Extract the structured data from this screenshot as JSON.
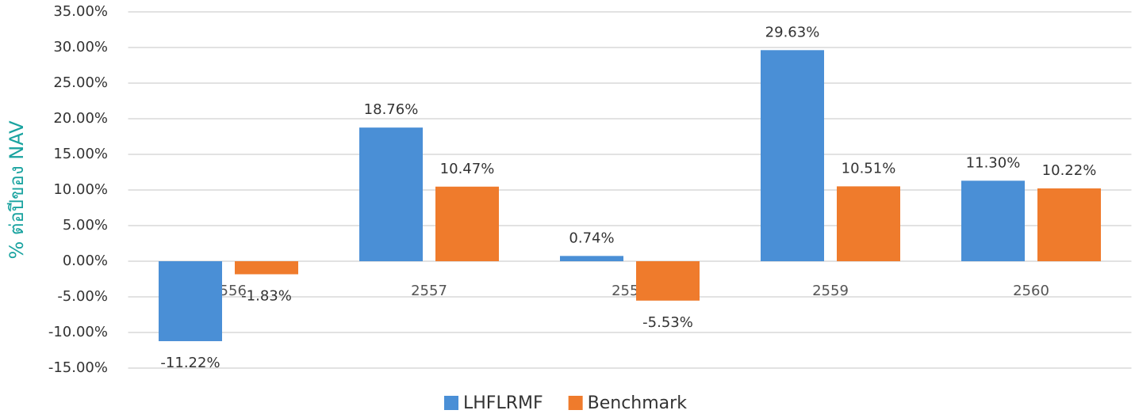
{
  "chart_data": {
    "type": "bar",
    "y_axis_label": "% ต่อปีของ NAV",
    "categories": [
      "2556",
      "2557",
      "2558",
      "2559",
      "2560"
    ],
    "series": [
      {
        "name": "LHFLRMF",
        "color": "#4a8fd6",
        "values": [
          -11.22,
          18.76,
          0.74,
          29.63,
          11.3
        ],
        "value_labels": [
          "-11.22%",
          "18.76%",
          "0.74%",
          "29.63%",
          "11.30%"
        ]
      },
      {
        "name": "Benchmark",
        "color": "#ef7b2c",
        "values": [
          -1.83,
          10.47,
          -5.53,
          10.51,
          10.22
        ],
        "value_labels": [
          "-1.83%",
          "10.47%",
          "-5.53%",
          "10.51%",
          "10.22%"
        ]
      }
    ],
    "ylim": [
      -15,
      35
    ],
    "yticks": [
      {
        "value": -15,
        "label": "-15.00%"
      },
      {
        "value": -10,
        "label": "-10.00%"
      },
      {
        "value": -5,
        "label": "-5.00%"
      },
      {
        "value": 0,
        "label": "0.00%"
      },
      {
        "value": 5,
        "label": "5.00%"
      },
      {
        "value": 10,
        "label": "10.00%"
      },
      {
        "value": 15,
        "label": "15.00%"
      },
      {
        "value": 20,
        "label": "20.00%"
      },
      {
        "value": 25,
        "label": "25.00%"
      },
      {
        "value": 30,
        "label": "30.00%"
      },
      {
        "value": 35,
        "label": "35.00%"
      }
    ],
    "grid": true,
    "legend": "bottom"
  }
}
